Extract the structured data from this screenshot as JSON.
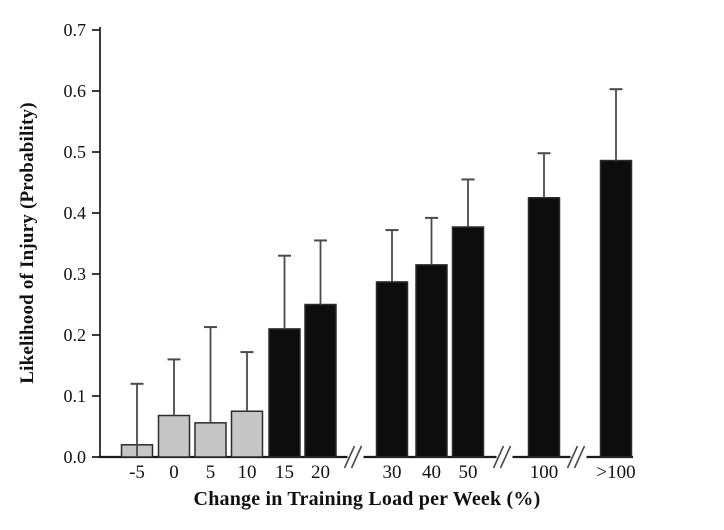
{
  "figure": {
    "background": "#ffffff"
  },
  "chart_data": {
    "type": "bar",
    "title": "",
    "xlabel": "Change in Training Load per Week (%)",
    "ylabel": "Likelihood of Injury (Probability)",
    "ylim": [
      0.0,
      0.7
    ],
    "ytick_step": 0.1,
    "ytick_labels": [
      "0.0",
      "0.1",
      "0.2",
      "0.3",
      "0.4",
      "0.5",
      "0.6",
      "0.7"
    ],
    "grid": false,
    "legend": "none",
    "error_bars": "upper-only",
    "axis_breaks_after": [
      "20",
      "50",
      "100"
    ],
    "categories": [
      "-5",
      "0",
      "5",
      "10",
      "15",
      "20",
      "30",
      "40",
      "50",
      "100",
      ">100"
    ],
    "values": [
      0.02,
      0.068,
      0.056,
      0.075,
      0.21,
      0.25,
      0.287,
      0.315,
      0.377,
      0.425,
      0.486
    ],
    "error_upper_ends": [
      0.12,
      0.16,
      0.213,
      0.172,
      0.33,
      0.355,
      0.372,
      0.392,
      0.455,
      0.498,
      0.603
    ],
    "bar_colors": [
      "#c6c6c6",
      "#c6c6c6",
      "#c6c6c6",
      "#c6c6c6",
      "#0d0d0d",
      "#0d0d0d",
      "#0d0d0d",
      "#0d0d0d",
      "#0d0d0d",
      "#0d0d0d",
      "#0d0d0d"
    ],
    "colors": {
      "gray_bar": "#c6c6c6",
      "black_bar": "#0d0d0d",
      "bar_border": "#2b2b2b",
      "error_bar": "#4a4a4a",
      "axis": "#1a1a1a",
      "text": "#111111"
    }
  }
}
